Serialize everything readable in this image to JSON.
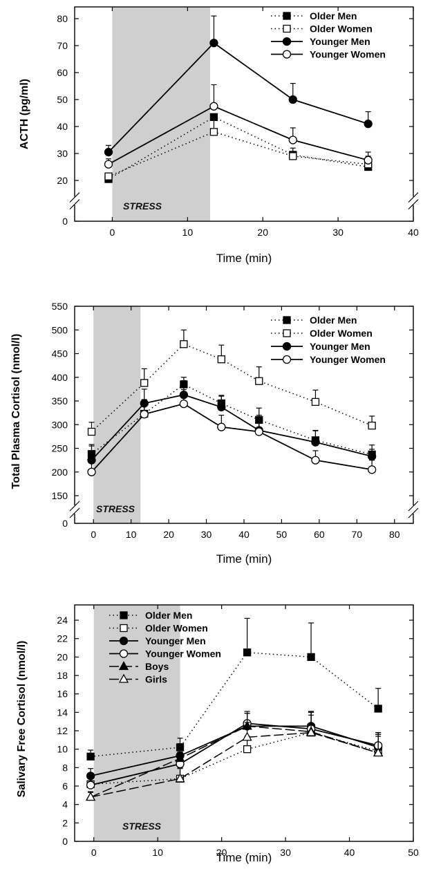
{
  "chart_data": [
    {
      "type": "line",
      "ylabel": "ACTH (pg/ml)",
      "xlabel": "Time (min)",
      "xlim": [
        -5,
        40
      ],
      "ylim": [
        0,
        80
      ],
      "y_axis_break": [
        0,
        20
      ],
      "xticks": [
        0,
        10,
        20,
        30,
        40
      ],
      "yticks": [
        0,
        20,
        30,
        40,
        50,
        60,
        70,
        80
      ],
      "stress_label": "STRESS",
      "stress_window": [
        0,
        13
      ],
      "legend_position": "top-right",
      "series": [
        {
          "name": "Older Men",
          "style": "dotted",
          "marker": "square-filled",
          "x": [
            -0.5,
            13.5,
            24,
            34
          ],
          "y": [
            20.5,
            43.5,
            29.5,
            25
          ],
          "err": [
            1,
            0,
            0,
            0
          ]
        },
        {
          "name": "Older Women",
          "style": "dotted",
          "marker": "square-open",
          "x": [
            -0.5,
            13.5,
            24,
            34
          ],
          "y": [
            21.5,
            38,
            29,
            26
          ],
          "err": [
            0,
            4.5,
            3,
            3
          ]
        },
        {
          "name": "Younger Men",
          "style": "solid",
          "marker": "circle-filled",
          "x": [
            -0.5,
            13.5,
            24,
            34
          ],
          "y": [
            30.5,
            71,
            50,
            41
          ],
          "err": [
            2.5,
            10,
            6,
            4.5
          ]
        },
        {
          "name": "Younger Women",
          "style": "solid",
          "marker": "circle-open",
          "x": [
            -0.5,
            13.5,
            24,
            34
          ],
          "y": [
            26,
            47.5,
            35,
            27.5
          ],
          "err": [
            2,
            8,
            4.5,
            3
          ]
        }
      ]
    },
    {
      "type": "line",
      "ylabel": "Total Plasma Cortisol (nmol/l)",
      "xlabel": "Time (min)",
      "xlim": [
        -5,
        85
      ],
      "ylim": [
        0,
        550
      ],
      "y_axis_break": [
        0,
        150
      ],
      "xticks": [
        0,
        10,
        20,
        30,
        40,
        50,
        60,
        70,
        80
      ],
      "yticks": [
        0,
        150,
        200,
        250,
        300,
        350,
        400,
        450,
        500,
        550
      ],
      "stress_label": "STRESS",
      "stress_window": [
        0,
        12.5
      ],
      "legend_position": "top-right",
      "series": [
        {
          "name": "Older Men",
          "style": "dotted",
          "marker": "square-filled",
          "x": [
            -0.5,
            13.5,
            24,
            34,
            44,
            59,
            74
          ],
          "y": [
            238,
            323,
            385,
            345,
            310,
            267,
            237
          ],
          "err": [
            20,
            30,
            15,
            15,
            25,
            20,
            20
          ]
        },
        {
          "name": "Older Women",
          "style": "dotted",
          "marker": "square-open",
          "x": [
            -0.5,
            13.5,
            24,
            34,
            44,
            59,
            74
          ],
          "y": [
            285,
            388,
            470,
            438,
            392,
            348,
            298
          ],
          "err": [
            20,
            30,
            30,
            30,
            30,
            25,
            20
          ]
        },
        {
          "name": "Younger Men",
          "style": "solid",
          "marker": "circle-filled",
          "x": [
            -0.5,
            13.5,
            24,
            34,
            44,
            59,
            74
          ],
          "y": [
            225,
            345,
            363,
            337,
            288,
            263,
            233
          ],
          "err": [
            30,
            30,
            30,
            25,
            25,
            25,
            15
          ]
        },
        {
          "name": "Younger Women",
          "style": "solid",
          "marker": "circle-open",
          "x": [
            -0.5,
            13.5,
            24,
            34,
            44,
            59,
            74
          ],
          "y": [
            200,
            322,
            344,
            295,
            285,
            225,
            205
          ],
          "err": [
            20,
            30,
            30,
            25,
            35,
            20,
            20
          ]
        }
      ]
    },
    {
      "type": "line",
      "ylabel": "Salivary Free Cortisol (nmol/l)",
      "xlabel": "Time (min)",
      "xlim": [
        -3,
        50
      ],
      "ylim": [
        0,
        25
      ],
      "xticks": [
        0,
        10,
        20,
        30,
        40,
        50
      ],
      "yticks": [
        0,
        2,
        4,
        6,
        8,
        10,
        12,
        14,
        16,
        18,
        20,
        22,
        24
      ],
      "stress_label": "STRESS",
      "stress_window": [
        0,
        13.5
      ],
      "legend_position": "top-left",
      "series": [
        {
          "name": "Older Men",
          "style": "dotted",
          "marker": "square-filled",
          "x": [
            -0.5,
            13.5,
            24,
            34,
            44.5
          ],
          "y": [
            9.2,
            10.2,
            20.5,
            20,
            14.4
          ],
          "err": [
            0.7,
            1,
            3.7,
            3.7,
            2.2
          ]
        },
        {
          "name": "Older Women",
          "style": "dotted",
          "marker": "square-open",
          "x": [
            -0.5,
            13.5,
            24,
            34,
            44.5
          ],
          "y": [
            6.2,
            6.8,
            10,
            11.8,
            9.8
          ],
          "err": [
            0.8,
            1.1,
            1.4,
            2.2,
            1.8
          ]
        },
        {
          "name": "Younger Men",
          "style": "solid",
          "marker": "circle-filled",
          "x": [
            -0.5,
            13.5,
            24,
            34,
            44.5
          ],
          "y": [
            7.1,
            9.3,
            12.5,
            12.5,
            10.2
          ],
          "err": [
            0.8,
            1.3,
            1.4,
            1.6,
            1.6
          ]
        },
        {
          "name": "Younger Women",
          "style": "solid",
          "marker": "circle-open",
          "x": [
            -0.5,
            13.5,
            24,
            34,
            44.5
          ],
          "y": [
            6.1,
            8.4,
            12.8,
            12.2,
            10.4
          ],
          "err": [
            0.8,
            1.3,
            1.3,
            1.5,
            1.4
          ]
        },
        {
          "name": "Boys",
          "style": "long-dash",
          "marker": "triangle-filled",
          "x": [
            -0.5,
            13.5,
            24,
            34,
            44.5
          ],
          "y": [
            4.8,
            9.0,
            12.5,
            11.9,
            9.6
          ],
          "err": [
            0.5,
            1.2,
            1.4,
            2.2,
            1.8
          ]
        },
        {
          "name": "Girls",
          "style": "long-dash",
          "marker": "triangle-open",
          "x": [
            -0.5,
            13.5,
            24,
            34,
            44.5
          ],
          "y": [
            4.8,
            6.8,
            11.3,
            11.8,
            9.6
          ],
          "err": [
            0.6,
            1.2,
            1.6,
            2.2,
            2.0
          ]
        }
      ]
    }
  ]
}
